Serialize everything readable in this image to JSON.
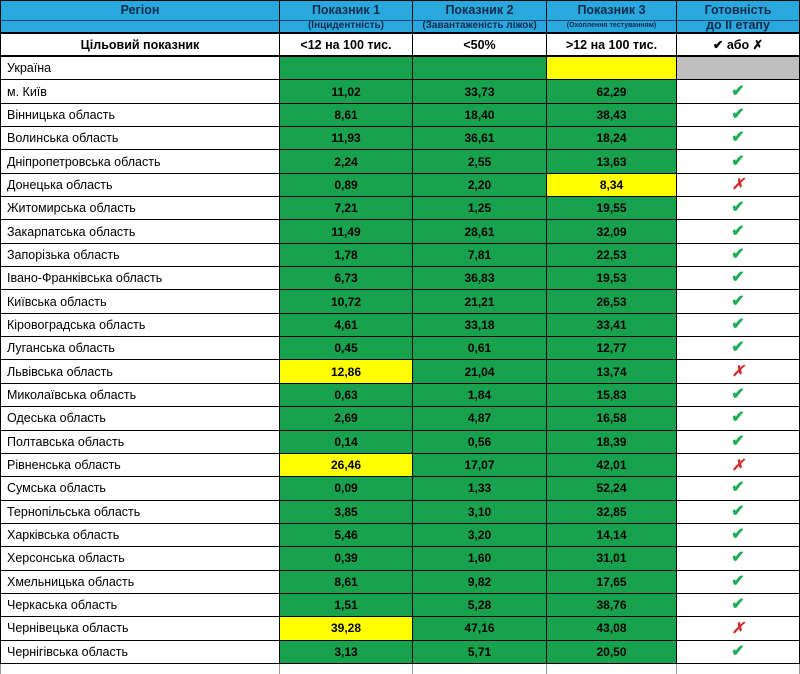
{
  "colors": {
    "header_bg": "#29a8de",
    "header_text": "#122c4d",
    "green_cell": "#18a24e",
    "yellow_cell": "#ffff00",
    "gray_cell": "#bfbfbf",
    "check_green": "#1fad57",
    "cross_red": "#d42a2a",
    "border": "#000000"
  },
  "icons": {
    "check": "✔",
    "cross": "✗"
  },
  "table": {
    "header": {
      "columns": [
        {
          "title": "Регіон",
          "subtitle": ""
        },
        {
          "title": "Показник 1",
          "subtitle": "(Інцидентність)"
        },
        {
          "title": "Показник 2",
          "subtitle": "(Завантаженість ліжок)"
        },
        {
          "title": "Показник 3",
          "subtitle": "(Охоплення тестуванням)"
        },
        {
          "title": "Готовність",
          "subtitle": "до II етапу"
        }
      ]
    },
    "target_row": {
      "label": "Цільовий показник",
      "p1": "<12 на 100 тис.",
      "p2": "<50%",
      "p3": ">12 на 100 тис.",
      "readiness": "✔ або ✗"
    },
    "rows": [
      {
        "region": "Україна",
        "p1": "",
        "p2": "",
        "p3": "",
        "p1_color": "green",
        "p3_color": "yellow",
        "readiness": "gray"
      },
      {
        "region": "м. Київ",
        "p1": "11,02",
        "p2": "33,73",
        "p3": "62,29",
        "p1_color": "green",
        "p3_color": "green",
        "readiness": "check"
      },
      {
        "region": "Вінницька область",
        "p1": "8,61",
        "p2": "18,40",
        "p3": "38,43",
        "p1_color": "green",
        "p3_color": "green",
        "readiness": "check"
      },
      {
        "region": "Волинська область",
        "p1": "11,93",
        "p2": "36,61",
        "p3": "18,24",
        "p1_color": "green",
        "p3_color": "green",
        "readiness": "check"
      },
      {
        "region": "Дніпропетровська область",
        "p1": "2,24",
        "p2": "2,55",
        "p3": "13,63",
        "p1_color": "green",
        "p3_color": "green",
        "readiness": "check"
      },
      {
        "region": "Донецька область",
        "p1": "0,89",
        "p2": "2,20",
        "p3": "8,34",
        "p1_color": "green",
        "p3_color": "yellow",
        "readiness": "cross"
      },
      {
        "region": "Житомирська область",
        "p1": "7,21",
        "p2": "1,25",
        "p3": "19,55",
        "p1_color": "green",
        "p3_color": "green",
        "readiness": "check"
      },
      {
        "region": "Закарпатська область",
        "p1": "11,49",
        "p2": "28,61",
        "p3": "32,09",
        "p1_color": "green",
        "p3_color": "green",
        "readiness": "check"
      },
      {
        "region": "Запорізька область",
        "p1": "1,78",
        "p2": "7,81",
        "p3": "22,53",
        "p1_color": "green",
        "p3_color": "green",
        "readiness": "check"
      },
      {
        "region": "Івано-Франківська область",
        "p1": "6,73",
        "p2": "36,83",
        "p3": "19,53",
        "p1_color": "green",
        "p3_color": "green",
        "readiness": "check"
      },
      {
        "region": "Київська область",
        "p1": "10,72",
        "p2": "21,21",
        "p3": "26,53",
        "p1_color": "green",
        "p3_color": "green",
        "readiness": "check"
      },
      {
        "region": "Кіровоградська область",
        "p1": "4,61",
        "p2": "33,18",
        "p3": "33,41",
        "p1_color": "green",
        "p3_color": "green",
        "readiness": "check"
      },
      {
        "region": "Луганська область",
        "p1": "0,45",
        "p2": "0,61",
        "p3": "12,77",
        "p1_color": "green",
        "p3_color": "green",
        "readiness": "check"
      },
      {
        "region": "Львівська область",
        "p1": "12,86",
        "p2": "21,04",
        "p3": "13,74",
        "p1_color": "yellow",
        "p3_color": "green",
        "readiness": "cross"
      },
      {
        "region": "Миколаївська область",
        "p1": "0,63",
        "p2": "1,84",
        "p3": "15,83",
        "p1_color": "green",
        "p3_color": "green",
        "readiness": "check"
      },
      {
        "region": "Одеська область",
        "p1": "2,69",
        "p2": "4,87",
        "p3": "16,58",
        "p1_color": "green",
        "p3_color": "green",
        "readiness": "check"
      },
      {
        "region": "Полтавська область",
        "p1": "0,14",
        "p2": "0,56",
        "p3": "18,39",
        "p1_color": "green",
        "p3_color": "green",
        "readiness": "check"
      },
      {
        "region": "Рівненська область",
        "p1": "26,46",
        "p2": "17,07",
        "p3": "42,01",
        "p1_color": "yellow",
        "p3_color": "green",
        "readiness": "cross"
      },
      {
        "region": "Сумська область",
        "p1": "0,09",
        "p2": "1,33",
        "p3": "52,24",
        "p1_color": "green",
        "p3_color": "green",
        "readiness": "check"
      },
      {
        "region": "Тернопільська область",
        "p1": "3,85",
        "p2": "3,10",
        "p3": "32,85",
        "p1_color": "green",
        "p3_color": "green",
        "readiness": "check"
      },
      {
        "region": "Харківська область",
        "p1": "5,46",
        "p2": "3,20",
        "p3": "14,14",
        "p1_color": "green",
        "p3_color": "green",
        "readiness": "check"
      },
      {
        "region": "Херсонська область",
        "p1": "0,39",
        "p2": "1,60",
        "p3": "31,01",
        "p1_color": "green",
        "p3_color": "green",
        "readiness": "check"
      },
      {
        "region": "Хмельницька область",
        "p1": "8,61",
        "p2": "9,82",
        "p3": "17,65",
        "p1_color": "green",
        "p3_color": "green",
        "readiness": "check"
      },
      {
        "region": "Черкаська область",
        "p1": "1,51",
        "p2": "5,28",
        "p3": "38,76",
        "p1_color": "green",
        "p3_color": "green",
        "readiness": "check"
      },
      {
        "region": "Чернівецька область",
        "p1": "39,28",
        "p2": "47,16",
        "p3": "43,08",
        "p1_color": "yellow",
        "p3_color": "green",
        "readiness": "cross"
      },
      {
        "region": "Чернігівська область",
        "p1": "3,13",
        "p2": "5,71",
        "p3": "20,50",
        "p1_color": "green",
        "p3_color": "green",
        "readiness": "check"
      }
    ]
  }
}
